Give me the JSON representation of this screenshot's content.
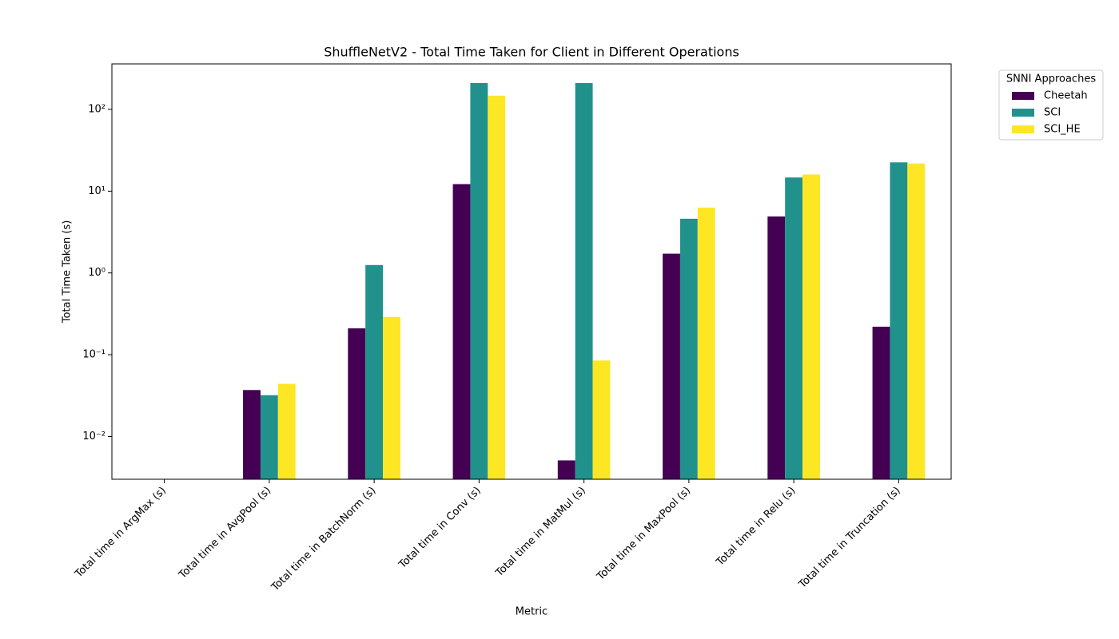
{
  "chart_data": {
    "type": "bar",
    "title": "ShuffleNetV2 - Total Time Taken for Client in Different Operations",
    "x_label": "Metric",
    "y_label": "Total Time Taken (s)",
    "categories": [
      "Total time in ArgMax (s)",
      "Total time in AvgPool (s)",
      "Total time in BatchNorm (s)",
      "Total time in Conv (s)",
      "Total time in MatMul (s)",
      "Total time in MaxPool (s)",
      "Total time in Relu (s)",
      "Total time in Truncation (s)"
    ],
    "series": [
      {
        "name": "Cheetah",
        "color": "#440154",
        "values": [
          0,
          0.037,
          0.21,
          12.2,
          0.0051,
          1.72,
          4.9,
          0.22
        ]
      },
      {
        "name": "SCI",
        "color": "#21918c",
        "values": [
          0,
          0.032,
          1.25,
          210,
          210,
          4.6,
          14.7,
          22.5
        ]
      },
      {
        "name": "SCI_HE",
        "color": "#fde725",
        "values": [
          0,
          0.044,
          0.29,
          147,
          0.085,
          6.3,
          16,
          21.8
        ]
      }
    ],
    "legend_title": "SNNI Approaches",
    "legend": "outside upper right",
    "log_y": true,
    "ylim": [
      0.003,
      360
    ],
    "yticks": [
      {
        "value": 0.01,
        "label": "10⁻²"
      },
      {
        "value": 0.1,
        "label": "10⁻¹"
      },
      {
        "value": 1,
        "label": "10⁰"
      },
      {
        "value": 10,
        "label": "10¹"
      },
      {
        "value": 100,
        "label": "10²"
      }
    ]
  }
}
